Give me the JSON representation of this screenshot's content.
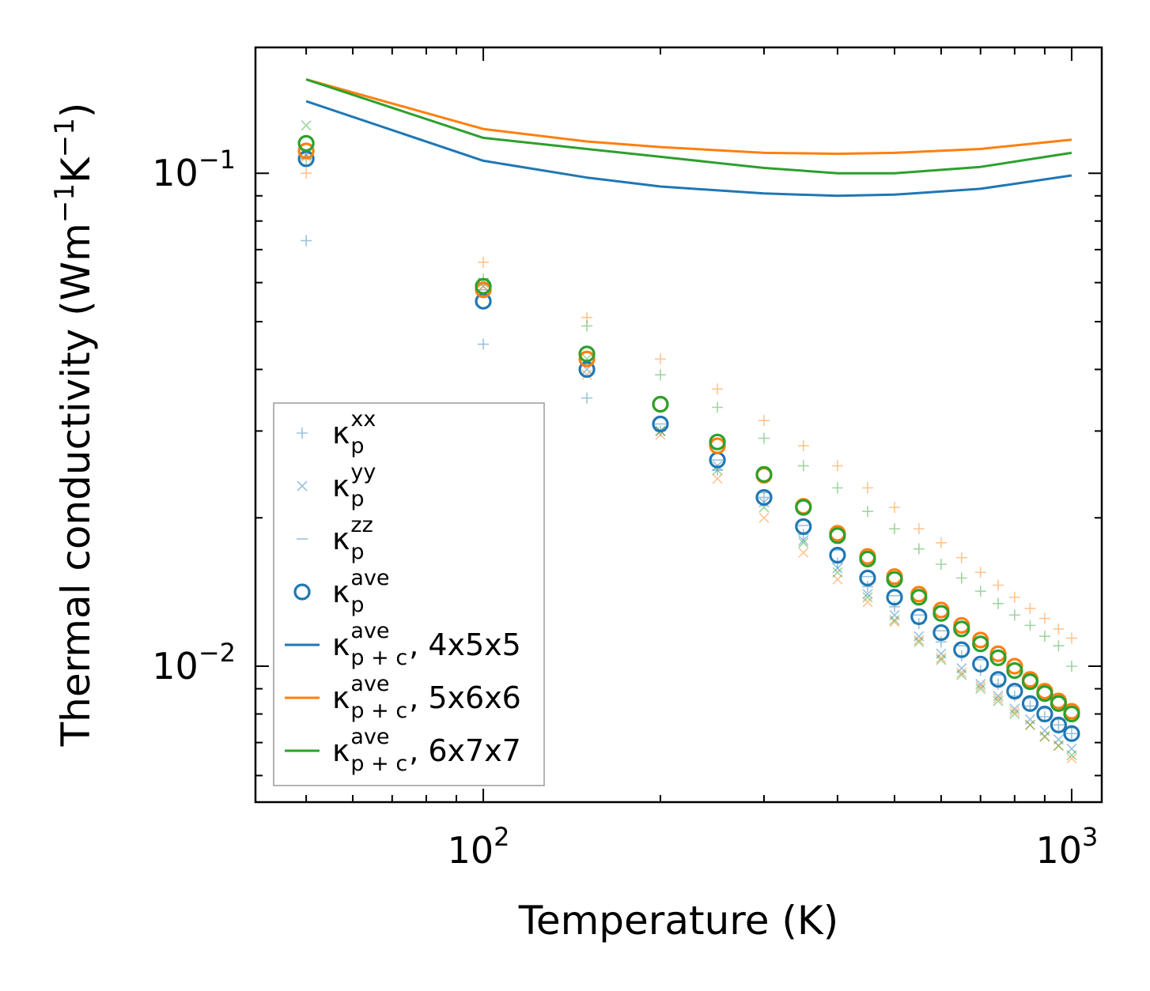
{
  "chart_data": {
    "type": "scatter+line",
    "xscale": "log",
    "yscale": "log",
    "xlim": [
      41,
      1125
    ],
    "ylim": [
      0.0053,
      0.18
    ],
    "xlabel": "Temperature (K)",
    "ylabel_parts": {
      "pre": "Thermal conductivity (Wm",
      "sup1": "−1",
      "mid": "K",
      "sup2": "−1",
      "post": ")"
    },
    "x_ticks": [
      {
        "value": 100,
        "base": "10",
        "exp": "2"
      },
      {
        "value": 1000,
        "base": "10",
        "exp": "3"
      }
    ],
    "y_ticks": [
      {
        "value": 0.1,
        "base": "10",
        "exp": "−1"
      },
      {
        "value": 0.01,
        "base": "10",
        "exp": "−2"
      }
    ],
    "colors": {
      "c1": "#1f77b4",
      "c2": "#ff7f0e",
      "c3": "#2ca02c"
    },
    "temperatures": [
      50,
      100,
      150,
      200,
      250,
      300,
      350,
      400,
      450,
      500,
      550,
      600,
      650,
      700,
      750,
      800,
      850,
      900,
      950,
      1000
    ],
    "points": {
      "kxx": [
        {
          "color": "c1",
          "values": [
            0.073,
            0.045,
            0.035,
            0.03,
            0.025,
            0.022,
            0.0185,
            0.0162,
            0.0145,
            0.0132,
            0.0122,
            0.0112,
            0.0105,
            0.0098,
            0.0092,
            0.0087,
            0.0083,
            0.0079,
            0.0076,
            0.0073
          ]
        },
        {
          "color": "c2",
          "values": [
            0.1,
            0.066,
            0.051,
            0.042,
            0.0365,
            0.0315,
            0.028,
            0.0255,
            0.023,
            0.021,
            0.019,
            0.0178,
            0.0166,
            0.0155,
            0.0146,
            0.0138,
            0.0131,
            0.0125,
            0.0119,
            0.0114
          ]
        },
        {
          "color": "c3",
          "values": [
            0.107,
            0.061,
            0.049,
            0.039,
            0.0335,
            0.029,
            0.0255,
            0.023,
            0.0206,
            0.019,
            0.0173,
            0.0161,
            0.0151,
            0.0142,
            0.0134,
            0.0127,
            0.0121,
            0.0115,
            0.011,
            0.01
          ]
        }
      ],
      "kyy": [
        {
          "color": "c1",
          "values": [
            0.109,
            0.059,
            0.04,
            0.03,
            0.0255,
            0.0215,
            0.018,
            0.0158,
            0.014,
            0.0127,
            0.0115,
            0.0106,
            0.0099,
            0.0092,
            0.0087,
            0.0082,
            0.0078,
            0.0074,
            0.0071,
            0.0068
          ]
        },
        {
          "color": "c2",
          "values": [
            0.108,
            0.059,
            0.039,
            0.0295,
            0.024,
            0.02,
            0.017,
            0.015,
            0.0135,
            0.0123,
            0.0113,
            0.0104,
            0.0097,
            0.0091,
            0.0086,
            0.0081,
            0.0076,
            0.0072,
            0.0069,
            0.0065
          ]
        },
        {
          "color": "c3",
          "values": [
            0.125,
            0.06,
            0.042,
            0.03,
            0.025,
            0.021,
            0.0178,
            0.0155,
            0.0138,
            0.0124,
            0.0112,
            0.0103,
            0.0096,
            0.009,
            0.0085,
            0.008,
            0.0076,
            0.0072,
            0.0069,
            0.0066
          ]
        }
      ],
      "kzz": [
        {
          "color": "c1",
          "values": [
            0.108,
            0.058,
            0.041,
            0.031,
            0.0262,
            0.0225,
            0.0193,
            0.0172,
            0.0152,
            0.0139,
            0.0127,
            0.0118,
            0.011,
            0.0103,
            0.0096,
            0.0091,
            0.0086,
            0.0082,
            0.0078,
            0.0075
          ]
        }
      ],
      "kave": [
        {
          "color": "c1",
          "values": [
            0.107,
            0.055,
            0.04,
            0.031,
            0.0262,
            0.022,
            0.0192,
            0.0168,
            0.0151,
            0.0138,
            0.0126,
            0.0117,
            0.0108,
            0.0101,
            0.0094,
            0.0089,
            0.0084,
            0.008,
            0.0076,
            0.0073
          ]
        },
        {
          "color": "c2",
          "values": [
            0.111,
            0.058,
            0.042,
            0.034,
            0.028,
            0.0244,
            0.0211,
            0.0186,
            0.0167,
            0.0152,
            0.014,
            0.013,
            0.0121,
            0.0113,
            0.0106,
            0.01,
            0.0094,
            0.0089,
            0.0085,
            0.0081
          ]
        },
        {
          "color": "c3",
          "values": [
            0.115,
            0.059,
            0.043,
            0.034,
            0.0285,
            0.0245,
            0.021,
            0.0184,
            0.0165,
            0.015,
            0.0138,
            0.0128,
            0.0119,
            0.0111,
            0.0104,
            0.0098,
            0.0093,
            0.0088,
            0.0084,
            0.008
          ]
        }
      ]
    },
    "lines": [
      {
        "color": "c1",
        "x": [
          50,
          100,
          150,
          200,
          300,
          400,
          500,
          700,
          1000
        ],
        "values": [
          0.14,
          0.106,
          0.098,
          0.094,
          0.091,
          0.09,
          0.0905,
          0.093,
          0.099
        ]
      },
      {
        "color": "c2",
        "x": [
          50,
          100,
          150,
          200,
          300,
          400,
          500,
          700,
          1000
        ],
        "values": [
          0.155,
          0.123,
          0.116,
          0.113,
          0.11,
          0.1095,
          0.11,
          0.112,
          0.117
        ]
      },
      {
        "color": "c3",
        "x": [
          50,
          100,
          150,
          200,
          300,
          400,
          500,
          700,
          1000
        ],
        "values": [
          0.155,
          0.118,
          0.112,
          0.108,
          0.1025,
          0.1,
          0.1,
          0.103,
          0.11
        ]
      }
    ],
    "legend": {
      "location": "lower-left",
      "entries": [
        {
          "marker": "plus",
          "color": "c1",
          "kappa": "κ",
          "sub": "p",
          "sup": "xx",
          "suffix": ""
        },
        {
          "marker": "x",
          "color": "c1",
          "kappa": "κ",
          "sub": "p",
          "sup": "yy",
          "suffix": ""
        },
        {
          "marker": "dash",
          "color": "c1",
          "kappa": "κ",
          "sub": "p",
          "sup": "zz",
          "suffix": ""
        },
        {
          "marker": "circle",
          "color": "c1",
          "kappa": "κ",
          "sub": "p",
          "sup": "ave",
          "suffix": ""
        },
        {
          "marker": "line",
          "color": "c1",
          "kappa": "κ",
          "sub": "p + c",
          "sup": "ave",
          "suffix": ", 4x5x5"
        },
        {
          "marker": "line",
          "color": "c2",
          "kappa": "κ",
          "sub": "p + c",
          "sup": "ave",
          "suffix": ", 5x6x6"
        },
        {
          "marker": "line",
          "color": "c3",
          "kappa": "κ",
          "sub": "p + c",
          "sup": "ave",
          "suffix": ", 6x7x7"
        }
      ]
    }
  }
}
